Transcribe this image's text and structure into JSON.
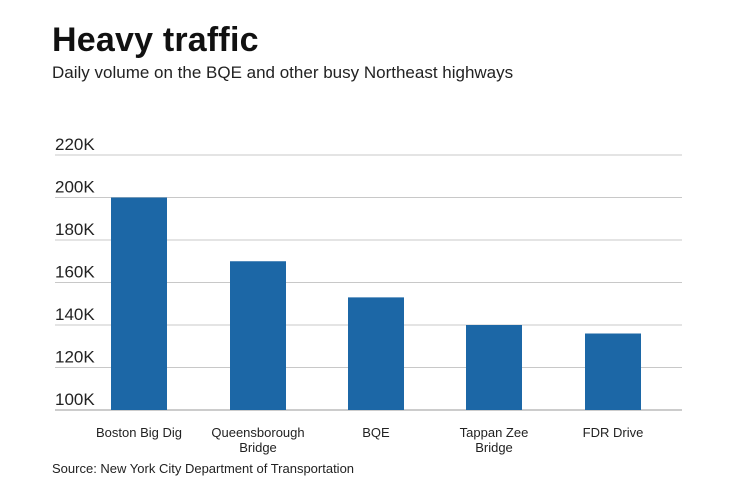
{
  "header": {
    "title": "Heavy traffic",
    "subtitle": "Daily volume on the BQE and other busy Northeast highways"
  },
  "footer": {
    "source": "Source: New York City Department of Transportation"
  },
  "colors": {
    "bar": "#1c67a6",
    "grid": "#c8c8c8",
    "axis": "#999999"
  },
  "chart_data": {
    "type": "bar",
    "title": "Heavy traffic",
    "subtitle": "Daily volume on the BQE and other busy Northeast highways",
    "xlabel": "",
    "ylabel": "",
    "categories": [
      [
        "Boston Big Dig"
      ],
      [
        "Queensborough",
        "Bridge"
      ],
      [
        "BQE"
      ],
      [
        "Tappan Zee",
        "Bridge"
      ],
      [
        "FDR Drive"
      ]
    ],
    "values": [
      200000,
      170000,
      153000,
      140000,
      136000
    ],
    "ylim": [
      100000,
      220000
    ],
    "yticks": [
      100000,
      120000,
      140000,
      160000,
      180000,
      200000,
      220000
    ],
    "ytick_labels": [
      "100K",
      "120K",
      "140K",
      "160K",
      "180K",
      "200K",
      "220K"
    ],
    "grid": true,
    "legend": "none"
  }
}
